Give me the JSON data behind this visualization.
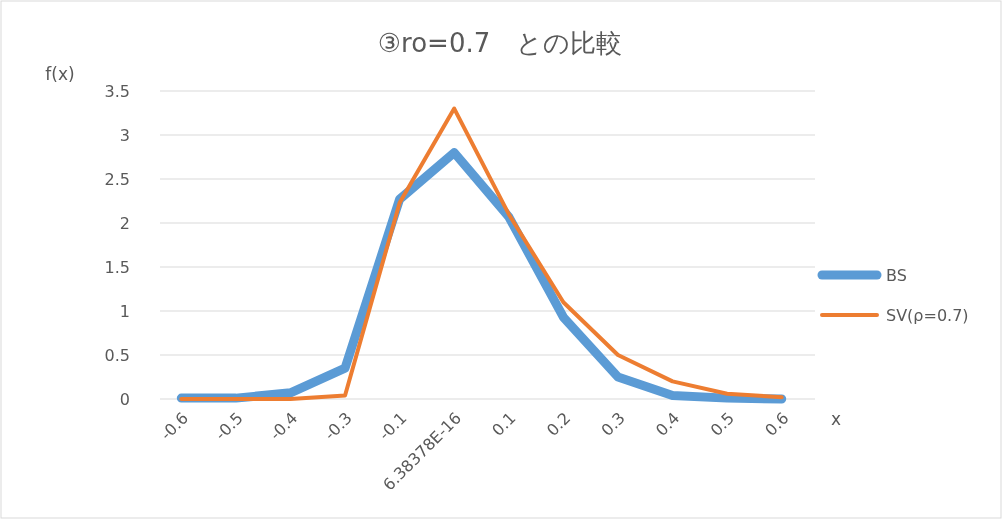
{
  "chart_data": {
    "type": "line",
    "title": "③ro=0.7　との比較",
    "xlabel": "x",
    "ylabel": "f(x)",
    "categories": [
      "-0.6",
      "-0.5",
      "-0.4",
      "-0.3",
      "-0.1",
      "6.38378E-16",
      "0.1",
      "0.2",
      "0.3",
      "0.4",
      "0.5",
      "0.6"
    ],
    "series": [
      {
        "name": "BS",
        "color": "#5b9bd5",
        "values": [
          0.01,
          0.01,
          0.07,
          0.35,
          2.27,
          2.8,
          2.07,
          0.93,
          0.25,
          0.04,
          0.01,
          0.0
        ]
      },
      {
        "name": "SV(ρ=0.7)",
        "color": "#ed7d31",
        "values": [
          0,
          0,
          0,
          0.04,
          2.23,
          3.3,
          2.1,
          1.1,
          0.5,
          0.2,
          0.06,
          0.02
        ]
      }
    ],
    "ylim": [
      0,
      3.5
    ],
    "yticks": [
      0,
      0.5,
      1,
      1.5,
      2,
      2.5,
      3,
      3.5
    ],
    "grid": "y",
    "legend": "right"
  }
}
